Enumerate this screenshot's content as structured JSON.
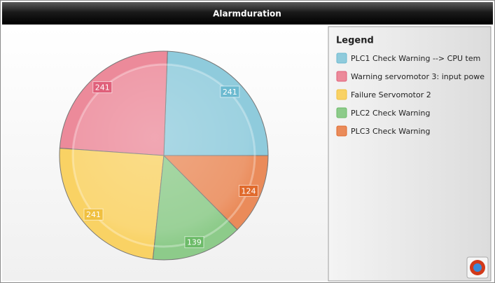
{
  "chart_data": {
    "type": "pie",
    "title": "Alarmduration",
    "legend_title": "Legend",
    "categories": [
      "PLC1 Check Warning --> CPU tem",
      "Warning servomotor 3: input powe",
      "Failure Servomotor 2",
      "PLC2 Check Warning",
      "PLC3  Check Warning"
    ],
    "values": [
      241,
      241,
      241,
      139,
      124
    ],
    "colors": [
      "#8fcbdc",
      "#ec8a9a",
      "#f9d264",
      "#8dcb8a",
      "#ea8b5a"
    ],
    "label_colors": [
      "#6cbad0",
      "#e0607a",
      "#f0c040",
      "#6cbb68",
      "#e06a2c"
    ]
  }
}
